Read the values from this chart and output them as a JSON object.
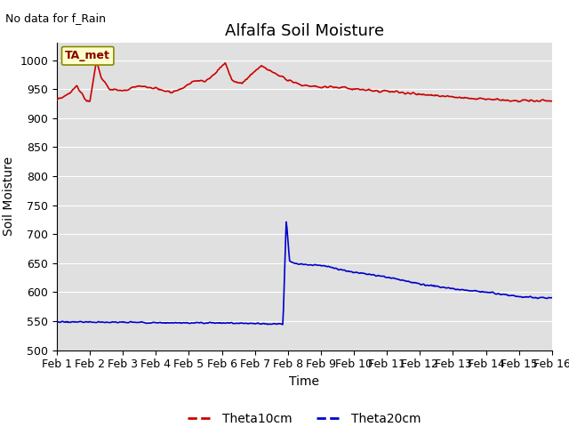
{
  "title": "Alfalfa Soil Moisture",
  "xlabel": "Time",
  "ylabel": "Soil Moisture",
  "no_data_text": "No data for f_Rain",
  "annotation_text": "TA_met",
  "ylim": [
    500,
    1030
  ],
  "yticks": [
    500,
    550,
    600,
    650,
    700,
    750,
    800,
    850,
    900,
    950,
    1000
  ],
  "x_labels": [
    "Feb 1",
    "Feb 2",
    "Feb 3",
    "Feb 4",
    "Feb 5",
    "Feb 6",
    "Feb 7",
    "Feb 8",
    "Feb 9",
    "Feb 10",
    "Feb 11",
    "Feb 12",
    "Feb 13",
    "Feb 14",
    "Feb 15",
    "Feb 16"
  ],
  "red_color": "#cc0000",
  "blue_color": "#0000cc",
  "bg_color": "#e0e0e0",
  "annotation_bg": "#ffffcc",
  "annotation_border": "#999900",
  "legend_labels": [
    "Theta10cm",
    "Theta20cm"
  ],
  "title_fontsize": 13,
  "axis_label_fontsize": 10,
  "tick_fontsize": 9,
  "n_days": 15
}
